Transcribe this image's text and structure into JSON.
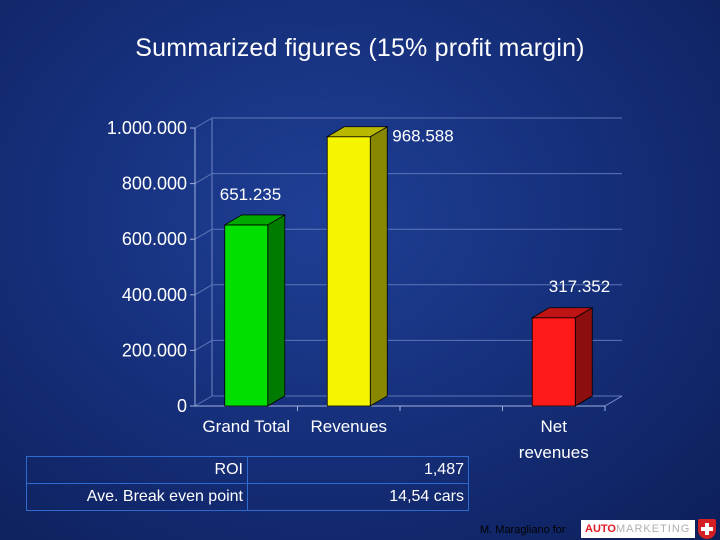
{
  "slide": {
    "title": "Summarized figures (15% profit margin)"
  },
  "chart_data": {
    "type": "bar",
    "categories": [
      "Grand Total",
      "Revenues",
      "",
      "Net revenues"
    ],
    "category_lines": [
      [
        "Grand Total"
      ],
      [
        "Revenues"
      ],
      [],
      [
        "Net",
        "revenues"
      ]
    ],
    "values": [
      651235,
      968588,
      null,
      317352
    ],
    "data_labels": [
      "651.235",
      "968.588",
      "",
      "317.352"
    ],
    "colors": [
      "#00e000",
      "#f5f500",
      "",
      "#ff1a1a"
    ],
    "title": "",
    "xlabel": "",
    "ylabel": "",
    "ylim": [
      0,
      1000000
    ],
    "yticks": [
      0,
      200000,
      400000,
      600000,
      800000,
      1000000
    ],
    "ytick_labels": [
      "0",
      "200.000",
      "400.000",
      "600.000",
      "800.000",
      "1.000.000"
    ],
    "grid": true,
    "style": "3d"
  },
  "table": {
    "rows": [
      {
        "label": "ROI",
        "value": "1,487"
      },
      {
        "label": "Ave. Break even point",
        "value": "14,54 cars"
      }
    ]
  },
  "footer": {
    "byline": "M. Maragliano for",
    "logo_text_a": "AUTO",
    "logo_text_b": "MARKETING",
    "logo_icon": "swiss-cross-icon"
  }
}
